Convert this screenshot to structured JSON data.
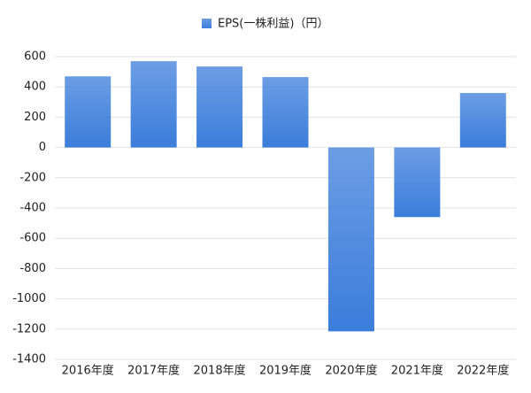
{
  "chart_data": {
    "type": "bar",
    "categories": [
      "2016年度",
      "2017年度",
      "2018年度",
      "2019年度",
      "2020年度",
      "2021年度",
      "2022年度"
    ],
    "series": [
      {
        "name": "EPS(一株利益)（円）",
        "color": "#3b7ddb",
        "values": [
          470,
          570,
          535,
          465,
          -1215,
          -460,
          360
        ]
      }
    ],
    "ylim": [
      -1400,
      600
    ],
    "yticks": [
      -1400,
      -1200,
      -1000,
      -800,
      -600,
      -400,
      -200,
      0,
      200,
      400,
      600
    ],
    "grid": true,
    "legend": "top"
  }
}
